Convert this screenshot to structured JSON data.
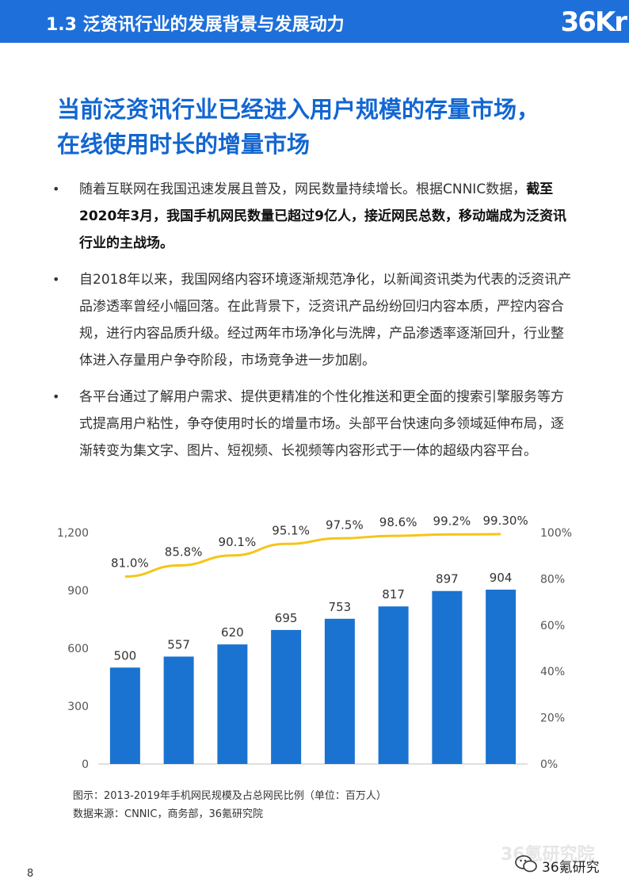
{
  "header": {
    "title": "1.3 泛资讯行业的发展背景与发展动力",
    "logo_text": "36Kr"
  },
  "headline": {
    "line1": "当前泛资讯行业已经进入用户规模的存量市场，",
    "line2": "在线使用时长的增量市场"
  },
  "bullets": [
    {
      "text": "随着互联网在我国迅速发展且普及，网民数量持续增长。根据CNNIC数据，",
      "bold": "截至2020年3月，我国手机网民数量已超过9亿人，接近网民总数，移动端成为泛资讯行业的主战场。"
    },
    {
      "text": "自2018年以来，我国网络内容环境逐渐规范净化，以新闻资讯类为代表的泛资讯产品渗透率曾经小幅回落。在此背景下，泛资讯产品纷纷回归内容本质，严控内容合规，进行内容品质升级。经过两年市场净化与洗牌，产品渗透率逐渐回升，行业整体进入存量用户争夺阶段，市场竞争进一步加剧。",
      "bold": ""
    },
    {
      "text": "各平台通过了解用户需求、提供更精准的个性化推送和更全面的搜索引擎服务等方式提高用户粘性，争夺使用时长的增量市场。头部平台快速向多领域延伸布局，逐渐转变为集文字、图片、短视频、长视频等内容形式于一体的超级内容平台。",
      "bold": ""
    }
  ],
  "chart_data": {
    "type": "bar",
    "title": "",
    "values": [
      500,
      557,
      620,
      695,
      753,
      817,
      897,
      904
    ],
    "series": [
      {
        "type": "bar",
        "values": [
          500,
          557,
          620,
          695,
          753,
          817,
          897,
          904
        ],
        "color": "#1a73d0"
      },
      {
        "type": "line",
        "axis": "right",
        "values": [
          81.0,
          85.8,
          90.1,
          95.1,
          97.5,
          98.6,
          99.2,
          99.3
        ],
        "labels": [
          "81.0%",
          "85.8%",
          "90.1%",
          "95.1%",
          "97.5%",
          "98.6%",
          "99.2%",
          "99.30%"
        ],
        "color": "#f5c518"
      }
    ],
    "left_axis": {
      "range": [
        0,
        1200
      ],
      "ticks": [
        "0",
        "300",
        "600",
        "900",
        "1,200"
      ]
    },
    "right_axis": {
      "range": [
        0,
        100
      ],
      "ticks": [
        "0%",
        "20%",
        "40%",
        "60%",
        "80%",
        "100%"
      ]
    },
    "grid": false,
    "legend": "none"
  },
  "caption": {
    "line1": "图示：2013-2019年手机网民规模及占总网民比例（单位：百万人）",
    "line2": "数据来源：CNNIC，商务部，36氪研究院"
  },
  "footer": {
    "watermark": "36氪研究院",
    "brand": "36氪研究",
    "page_number": "8"
  }
}
